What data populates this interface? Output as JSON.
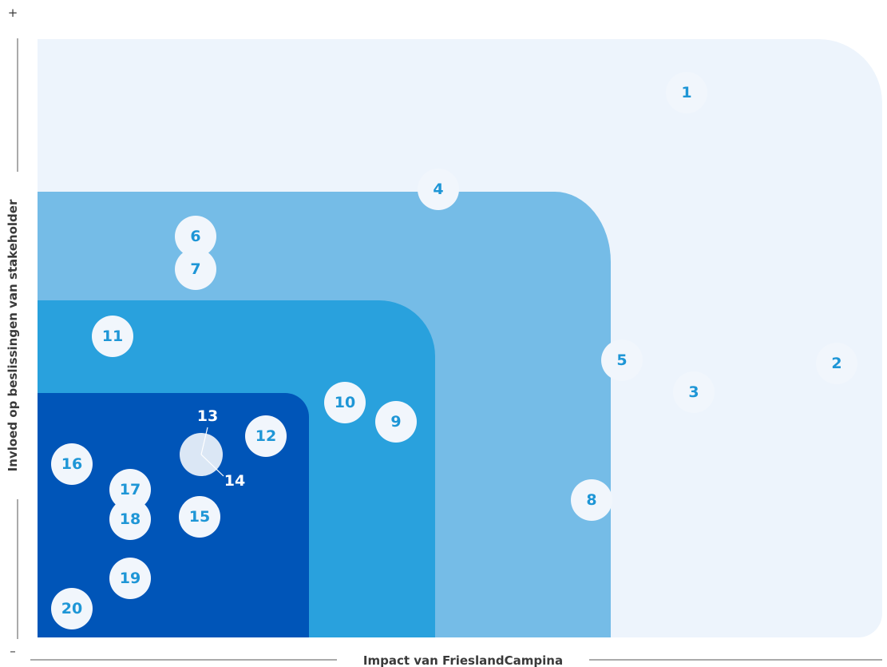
{
  "axes": {
    "y_label": "Invloed op beslissingen van stakeholder",
    "x_label": "Impact van FrieslandCampina",
    "y_high": "+",
    "y_low": "–"
  },
  "nodes": [
    {
      "label": "1"
    },
    {
      "label": "2"
    },
    {
      "label": "3"
    },
    {
      "label": "4"
    },
    {
      "label": "5"
    },
    {
      "label": "6"
    },
    {
      "label": "7"
    },
    {
      "label": "8"
    },
    {
      "label": "9"
    },
    {
      "label": "10"
    },
    {
      "label": "11"
    },
    {
      "label": "12"
    },
    {
      "label": "13"
    },
    {
      "label": "14"
    },
    {
      "label": "15"
    },
    {
      "label": "16"
    },
    {
      "label": "17"
    },
    {
      "label": "18"
    },
    {
      "label": "19"
    },
    {
      "label": "20"
    }
  ]
}
